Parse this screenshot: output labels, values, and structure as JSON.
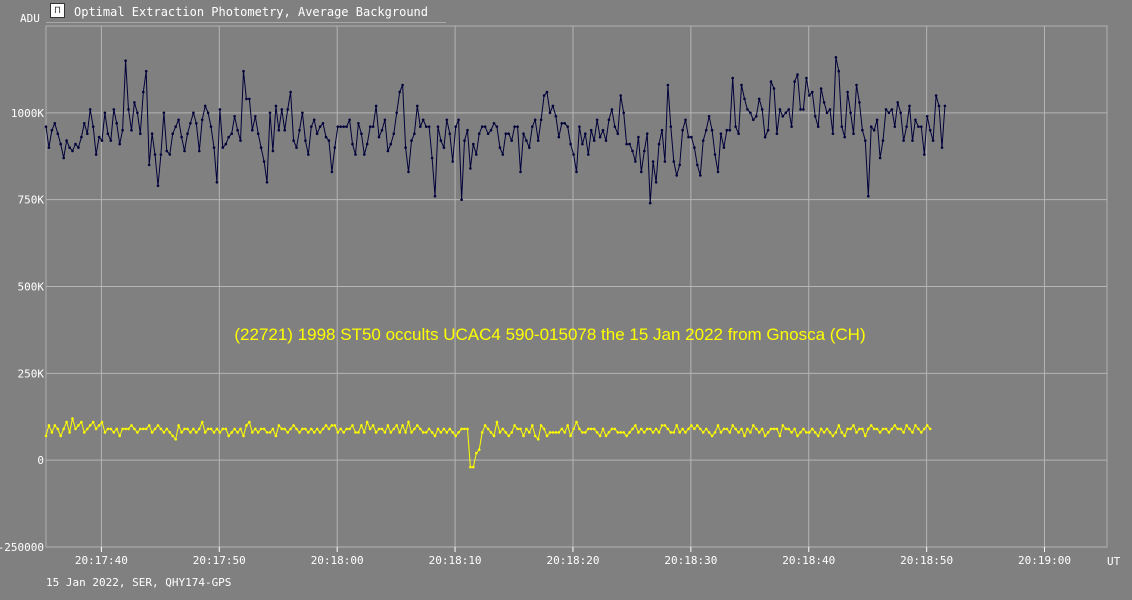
{
  "window": {
    "title": "Optimal Extraction Photometry, Average Background"
  },
  "chart_data": {
    "type": "line",
    "title": "(22721) 1998 ST50 occults UCAC4 590-015078 the 15 Jan 2022 from Gnosca (CH)",
    "ylabel": "ADU",
    "xlabel": "UT",
    "footer": "15 Jan 2022, SER, QHY174-GPS",
    "ylim": [
      -250000,
      1250000
    ],
    "y_ticks": [
      {
        "value": 1000000,
        "label": "1000K"
      },
      {
        "value": 750000,
        "label": "750K"
      },
      {
        "value": 500000,
        "label": "500K"
      },
      {
        "value": 250000,
        "label": "250K"
      },
      {
        "value": 0,
        "label": "0"
      },
      {
        "value": -250000,
        "label": "-250000"
      }
    ],
    "xlim": [
      "20:17:35.3",
      "20:19:05.3"
    ],
    "x_ticks": [
      "20:17:40",
      "20:17:50",
      "20:18:00",
      "20:18:10",
      "20:18:20",
      "20:18:30",
      "20:18:40",
      "20:18:50",
      "20:19:00"
    ],
    "grid": true,
    "series": [
      {
        "color": "#00003a",
        "x_start": "20:17:35.3",
        "x_step_s": 0.25,
        "values": [
          960000,
          900000,
          950000,
          970000,
          940000,
          910000,
          870000,
          920000,
          900000,
          890000,
          910000,
          900000,
          930000,
          970000,
          940000,
          1010000,
          960000,
          880000,
          930000,
          920000,
          1000000,
          940000,
          920000,
          1010000,
          970000,
          910000,
          950000,
          1150000,
          1010000,
          950000,
          1030000,
          1000000,
          940000,
          1060000,
          1120000,
          850000,
          940000,
          880000,
          790000,
          880000,
          1000000,
          890000,
          880000,
          940000,
          960000,
          980000,
          930000,
          890000,
          940000,
          970000,
          1000000,
          970000,
          890000,
          980000,
          1020000,
          1000000,
          960000,
          900000,
          800000,
          1010000,
          900000,
          910000,
          930000,
          940000,
          990000,
          950000,
          920000,
          1120000,
          1040000,
          1040000,
          950000,
          990000,
          940000,
          900000,
          860000,
          800000,
          1000000,
          890000,
          1020000,
          950000,
          1010000,
          950000,
          1010000,
          1060000,
          920000,
          900000,
          950000,
          1000000,
          920000,
          880000,
          960000,
          980000,
          940000,
          960000,
          970000,
          930000,
          920000,
          830000,
          900000,
          960000,
          960000,
          960000,
          960000,
          980000,
          910000,
          880000,
          970000,
          940000,
          880000,
          910000,
          960000,
          960000,
          1020000,
          930000,
          950000,
          980000,
          890000,
          910000,
          940000,
          1000000,
          1060000,
          1080000,
          900000,
          830000,
          920000,
          940000,
          1020000,
          960000,
          980000,
          960000,
          960000,
          870000,
          760000,
          960000,
          920000,
          900000,
          980000,
          940000,
          860000,
          960000,
          980000,
          750000,
          920000,
          950000,
          840000,
          910000,
          880000,
          940000,
          960000,
          960000,
          940000,
          950000,
          970000,
          960000,
          900000,
          880000,
          940000,
          940000,
          920000,
          960000,
          960000,
          830000,
          940000,
          920000,
          900000,
          960000,
          980000,
          920000,
          980000,
          1050000,
          1060000,
          1000000,
          1020000,
          990000,
          930000,
          970000,
          970000,
          960000,
          910000,
          880000,
          830000,
          960000,
          910000,
          940000,
          880000,
          950000,
          920000,
          980000,
          930000,
          950000,
          920000,
          980000,
          1010000,
          960000,
          940000,
          1050000,
          1000000,
          910000,
          910000,
          890000,
          860000,
          930000,
          830000,
          890000,
          940000,
          740000,
          860000,
          800000,
          910000,
          950000,
          860000,
          1080000,
          960000,
          860000,
          820000,
          850000,
          950000,
          980000,
          930000,
          930000,
          900000,
          850000,
          820000,
          920000,
          950000,
          990000,
          950000,
          880000,
          830000,
          940000,
          900000,
          950000,
          950000,
          1100000,
          960000,
          940000,
          1080000,
          1040000,
          1010000,
          1000000,
          980000,
          990000,
          1040000,
          1010000,
          930000,
          950000,
          1090000,
          1070000,
          940000,
          1010000,
          990000,
          1000000,
          1010000,
          960000,
          1090000,
          1110000,
          1010000,
          1010000,
          1100000,
          1050000,
          1060000,
          990000,
          960000,
          1070000,
          1030000,
          1000000,
          1010000,
          940000,
          1160000,
          1120000,
          960000,
          930000,
          1060000,
          1000000,
          940000,
          1080000,
          1030000,
          950000,
          920000,
          760000,
          960000,
          950000,
          980000,
          870000,
          920000,
          1010000,
          1000000,
          1010000,
          960000,
          1030000,
          1000000,
          920000,
          960000,
          1020000,
          920000,
          980000,
          960000,
          960000,
          880000,
          990000,
          950000,
          920000,
          1050000,
          1020000,
          900000,
          1020000
        ]
      },
      {
        "color": "#ffff00",
        "x_start": "20:17:35.3",
        "x_step_s": 0.25,
        "values": [
          70000,
          100000,
          80000,
          100000,
          90000,
          70000,
          90000,
          110000,
          80000,
          120000,
          90000,
          100000,
          110000,
          80000,
          90000,
          100000,
          110000,
          90000,
          100000,
          110000,
          80000,
          90000,
          90000,
          80000,
          90000,
          70000,
          90000,
          90000,
          90000,
          100000,
          90000,
          80000,
          90000,
          90000,
          90000,
          100000,
          80000,
          90000,
          100000,
          90000,
          80000,
          90000,
          80000,
          70000,
          60000,
          100000,
          80000,
          90000,
          90000,
          80000,
          90000,
          80000,
          90000,
          110000,
          80000,
          90000,
          90000,
          80000,
          90000,
          80000,
          90000,
          90000,
          70000,
          80000,
          90000,
          80000,
          90000,
          70000,
          100000,
          110000,
          80000,
          90000,
          80000,
          90000,
          90000,
          80000,
          80000,
          90000,
          70000,
          100000,
          90000,
          90000,
          80000,
          90000,
          100000,
          90000,
          80000,
          90000,
          90000,
          80000,
          90000,
          80000,
          90000,
          80000,
          90000,
          100000,
          90000,
          100000,
          100000,
          80000,
          90000,
          80000,
          90000,
          90000,
          100000,
          80000,
          80000,
          100000,
          80000,
          110000,
          90000,
          100000,
          80000,
          90000,
          90000,
          80000,
          100000,
          80000,
          90000,
          100000,
          80000,
          100000,
          80000,
          110000,
          80000,
          90000,
          100000,
          90000,
          80000,
          80000,
          90000,
          80000,
          70000,
          90000,
          80000,
          90000,
          80000,
          90000,
          80000,
          70000,
          80000,
          90000,
          90000,
          90000,
          -20000,
          -20000,
          20000,
          30000,
          80000,
          100000,
          90000,
          80000,
          70000,
          110000,
          80000,
          90000,
          80000,
          70000,
          80000,
          100000,
          90000,
          90000,
          70000,
          90000,
          80000,
          100000,
          70000,
          60000,
          100000,
          90000,
          70000,
          80000,
          80000,
          80000,
          80000,
          90000,
          80000,
          100000,
          70000,
          90000,
          110000,
          90000,
          80000,
          80000,
          90000,
          90000,
          90000,
          80000,
          70000,
          90000,
          70000,
          80000,
          90000,
          90000,
          80000,
          80000,
          80000,
          70000,
          80000,
          90000,
          100000,
          80000,
          90000,
          80000,
          90000,
          90000,
          80000,
          90000,
          80000,
          100000,
          100000,
          90000,
          80000,
          80000,
          100000,
          80000,
          90000,
          80000,
          90000,
          100000,
          90000,
          100000,
          90000,
          80000,
          90000,
          80000,
          70000,
          80000,
          100000,
          80000,
          90000,
          90000,
          80000,
          100000,
          90000,
          80000,
          90000,
          70000,
          90000,
          80000,
          100000,
          90000,
          80000,
          90000,
          70000,
          80000,
          90000,
          90000,
          90000,
          70000,
          100000,
          90000,
          90000,
          80000,
          90000,
          70000,
          80000,
          90000,
          80000,
          80000,
          90000,
          80000,
          70000,
          90000,
          80000,
          90000,
          80000,
          70000,
          80000,
          100000,
          80000,
          70000,
          90000,
          90000,
          100000,
          80000,
          90000,
          90000,
          70000,
          90000,
          100000,
          90000,
          90000,
          80000,
          90000,
          90000,
          80000,
          90000,
          100000,
          90000,
          90000,
          80000,
          100000,
          90000,
          80000,
          100000,
          90000,
          80000,
          90000,
          100000,
          90000
        ]
      }
    ]
  }
}
